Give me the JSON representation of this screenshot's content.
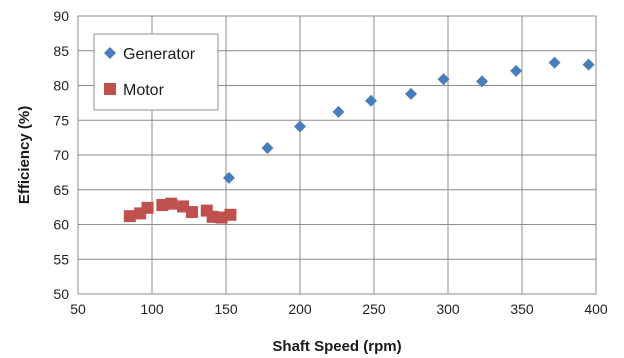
{
  "chart_data": {
    "type": "scatter",
    "xlabel": "Shaft Speed (rpm)",
    "ylabel": "Efficiency (%)",
    "xlim": [
      50,
      400
    ],
    "ylim": [
      50,
      90
    ],
    "x_ticks": [
      "50",
      "100",
      "150",
      "200",
      "250",
      "300",
      "350",
      "400"
    ],
    "y_ticks": [
      "50",
      "55",
      "60",
      "65",
      "70",
      "75",
      "80",
      "85",
      "90"
    ],
    "grid": true,
    "legend_position": "top-left",
    "series": [
      {
        "name": "Generator",
        "marker": "diamond",
        "color": "#4a7ebb",
        "points": [
          [
            152,
            66.7
          ],
          [
            178,
            71.0
          ],
          [
            200,
            74.1
          ],
          [
            226,
            76.2
          ],
          [
            248,
            77.8
          ],
          [
            275,
            78.8
          ],
          [
            297,
            80.9
          ],
          [
            323,
            80.6
          ],
          [
            346,
            82.1
          ],
          [
            372,
            83.3
          ],
          [
            395,
            83.0
          ]
        ]
      },
      {
        "name": "Motor",
        "marker": "square",
        "color": "#c0504d",
        "points": [
          [
            85,
            61.2
          ],
          [
            92,
            61.6
          ],
          [
            97,
            62.4
          ],
          [
            107,
            62.8
          ],
          [
            113,
            63.0
          ],
          [
            121,
            62.6
          ],
          [
            127,
            61.8
          ],
          [
            137,
            62.0
          ],
          [
            141,
            61.1
          ],
          [
            147,
            61.0
          ],
          [
            153,
            61.4
          ]
        ]
      }
    ]
  }
}
